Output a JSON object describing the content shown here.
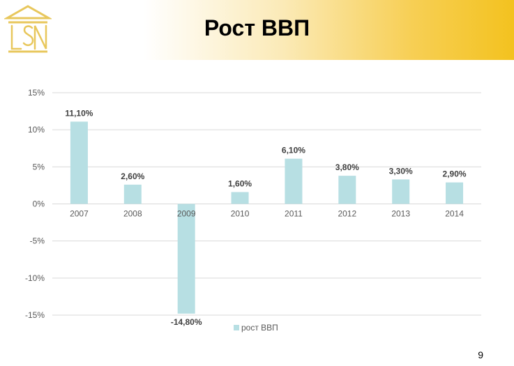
{
  "header": {
    "title": "Рост ВВП",
    "accent_color": "#f3c21f"
  },
  "logo": {
    "icon": "building-pediment-logo-icon",
    "monogram": "LSN",
    "color": "#e8c75c"
  },
  "page_number": "9",
  "chart_data": {
    "type": "bar",
    "categories": [
      "2007",
      "2008",
      "2009",
      "2010",
      "2011",
      "2012",
      "2013",
      "2014"
    ],
    "series": [
      {
        "name": "рост ВВП",
        "values": [
          11.1,
          2.6,
          -14.8,
          1.6,
          6.1,
          3.8,
          3.3,
          2.9
        ],
        "labels": [
          "11,10%",
          "2,60%",
          "-14,80%",
          "1,60%",
          "6,10%",
          "3,80%",
          "3,30%",
          "2,90%"
        ],
        "color": "#b7dfe3"
      }
    ],
    "yticks": [
      15,
      10,
      5,
      0,
      -5,
      -10,
      -15
    ],
    "ytick_labels": [
      "15%",
      "10%",
      "5%",
      "0%",
      "-5%",
      "-10%",
      "-15%"
    ],
    "ylim": [
      -15,
      15
    ],
    "grid": true,
    "legend": "bottom-center",
    "title": "",
    "xlabel": "",
    "ylabel": ""
  }
}
